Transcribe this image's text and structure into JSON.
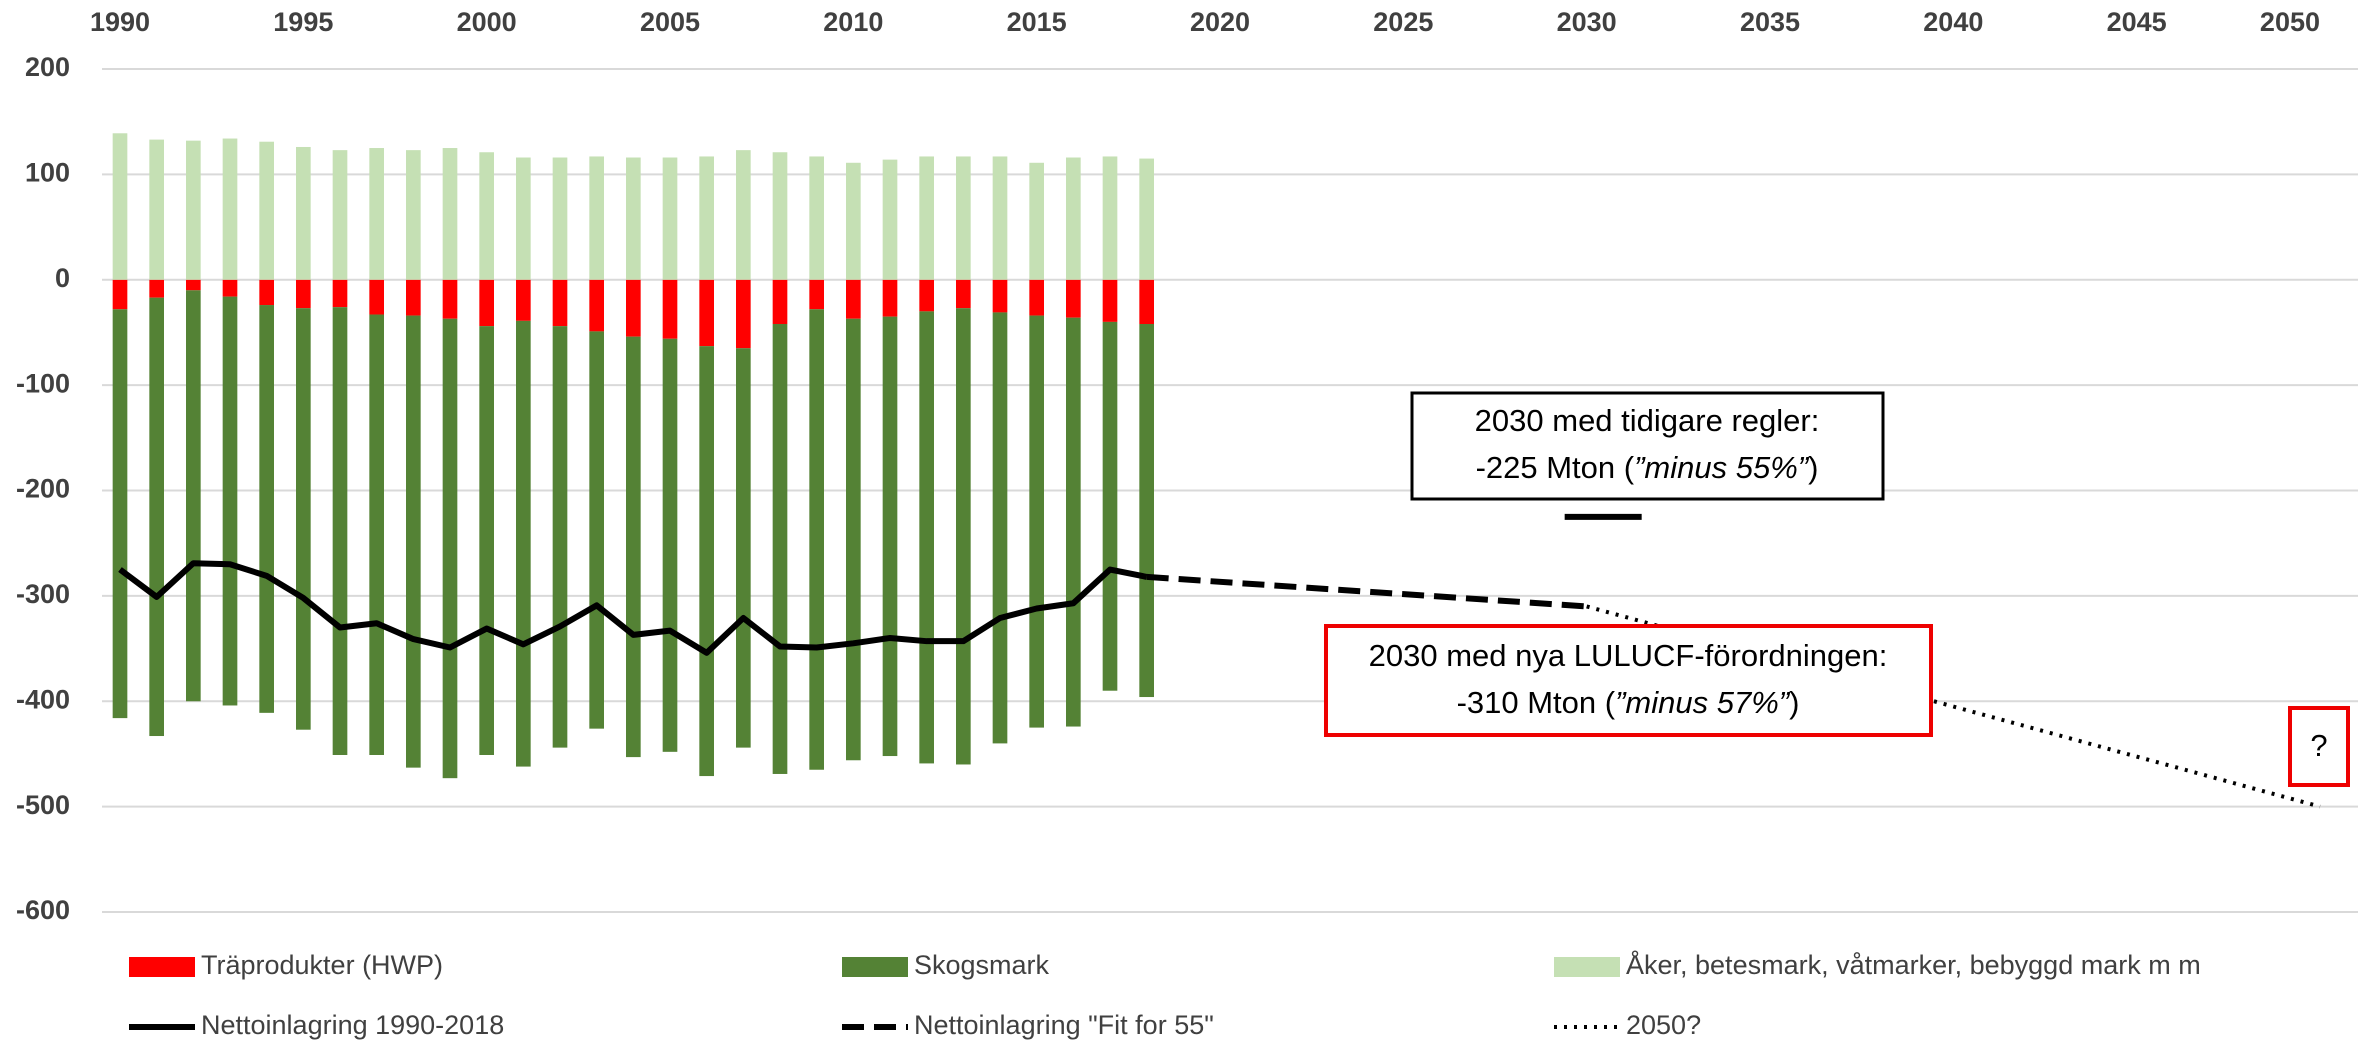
{
  "chart_data": {
    "type": "bar",
    "x": [
      1990,
      1991,
      1992,
      1993,
      1994,
      1995,
      1996,
      1997,
      1998,
      1999,
      2000,
      2001,
      2002,
      2003,
      2004,
      2005,
      2006,
      2007,
      2008,
      2009,
      2010,
      2011,
      2012,
      2013,
      2014,
      2015,
      2016,
      2017,
      2018
    ],
    "xlim": [
      1990,
      2050
    ],
    "xticks": [
      1990,
      1995,
      2000,
      2005,
      2010,
      2015,
      2020,
      2025,
      2030,
      2035,
      2040,
      2045,
      2050
    ],
    "ylim": [
      -600,
      200
    ],
    "yticks": [
      200,
      100,
      0,
      -100,
      -200,
      -300,
      -400,
      -500,
      -600
    ],
    "grid": true,
    "series": [
      {
        "name": "Träprodukter (HWP)",
        "type": "bar",
        "color": "#ff0000",
        "values": [
          -28,
          -17,
          -10,
          -16,
          -24,
          -27,
          -26,
          -33,
          -34,
          -37,
          -44,
          -39,
          -44,
          -49,
          -54,
          -56,
          -63,
          -65,
          -42,
          -28,
          -37,
          -35,
          -30,
          -27,
          -31,
          -34,
          -36,
          -40,
          -42
        ]
      },
      {
        "name": "Skogsmark",
        "type": "bar",
        "color": "#548235",
        "values": [
          -388,
          -416,
          -390,
          -388,
          -387,
          -400,
          -425,
          -418,
          -429,
          -436,
          -407,
          -423,
          -400,
          -377,
          -399,
          -392,
          -408,
          -379,
          -427,
          -437,
          -419,
          -417,
          -429,
          -433,
          -409,
          -391,
          -388,
          -350,
          -354
        ]
      },
      {
        "name": "Åker, betesmark, våtmarker, bebyggd mark m m",
        "type": "bar",
        "color": "#c5e0b4",
        "values": [
          139,
          133,
          132,
          134,
          131,
          126,
          123,
          125,
          123,
          125,
          121,
          116,
          116,
          117,
          116,
          116,
          117,
          123,
          121,
          117,
          111,
          114,
          117,
          117,
          117,
          111,
          116,
          117,
          115
        ]
      },
      {
        "name": "Nettoinlagring 1990-2018",
        "type": "line",
        "color": "#000000",
        "dash": "solid",
        "x": [
          1990,
          1991,
          1992,
          1993,
          1994,
          1995,
          1996,
          1997,
          1998,
          1999,
          2000,
          2001,
          2002,
          2003,
          2004,
          2005,
          2006,
          2007,
          2008,
          2009,
          2010,
          2011,
          2012,
          2013,
          2014,
          2015,
          2016,
          2017,
          2018
        ],
        "values": [
          -275,
          -301,
          -269,
          -270,
          -281,
          -302,
          -330,
          -326,
          -341,
          -349,
          -331,
          -346,
          -329,
          -309,
          -337,
          -333,
          -354,
          -321,
          -348,
          -349,
          -345,
          -340,
          -343,
          -343,
          -321,
          -312,
          -307,
          -275,
          -282
        ]
      },
      {
        "name": "Nettoinlagring \"Fit for 55\"",
        "type": "line",
        "color": "#000000",
        "dash": "dashed",
        "x": [
          2018,
          2030
        ],
        "values": [
          -282,
          -310
        ]
      },
      {
        "name": "2050?",
        "type": "line",
        "color": "#000000",
        "dash": "dotted",
        "x": [
          2030,
          2050
        ],
        "values": [
          -310,
          -500
        ]
      }
    ],
    "marker": {
      "x": 2030,
      "value": -225
    },
    "annotations": [
      {
        "line1": "2030 med tidigare regler:",
        "line2": [
          "-225 Mton (",
          "”minus 55%”",
          ")"
        ]
      },
      {
        "line1": "2030 med nya LULUCF-förordningen:",
        "line2": [
          "-310 Mton (",
          "”minus 57%”",
          ")"
        ]
      }
    ],
    "question": "?"
  }
}
